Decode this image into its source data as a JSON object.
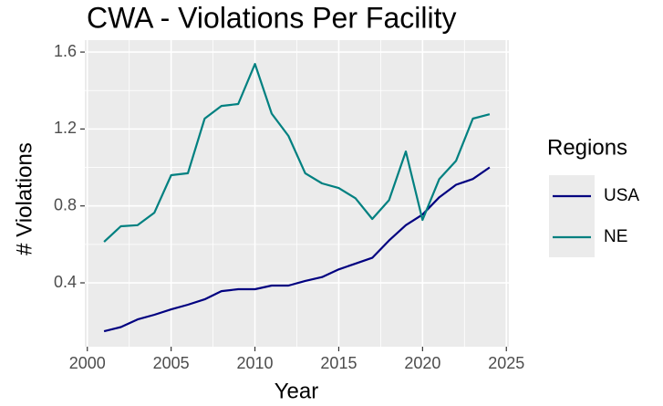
{
  "chart_data": {
    "type": "line",
    "title": "CWA - Violations Per Facility",
    "x_label": "Year",
    "y_label": "# Violations",
    "legend_title": "Regions",
    "x": [
      2001,
      2002,
      2003,
      2004,
      2005,
      2006,
      2007,
      2008,
      2009,
      2010,
      2011,
      2012,
      2013,
      2014,
      2015,
      2016,
      2017,
      2018,
      2019,
      2020,
      2021,
      2022,
      2023,
      2024
    ],
    "series": [
      {
        "name": "USA",
        "color": "#000080",
        "values": [
          0.148,
          0.17,
          0.21,
          0.234,
          0.262,
          0.286,
          0.314,
          0.357,
          0.367,
          0.367,
          0.386,
          0.386,
          0.41,
          0.43,
          0.47,
          0.5,
          0.53,
          0.62,
          0.7,
          0.755,
          0.845,
          0.91,
          0.94,
          1.0
        ]
      },
      {
        "name": "NE",
        "color": "#008080",
        "values": [
          0.613,
          0.694,
          0.7,
          0.765,
          0.96,
          0.97,
          1.254,
          1.32,
          1.33,
          1.538,
          1.28,
          1.164,
          0.97,
          0.917,
          0.893,
          0.84,
          0.732,
          0.83,
          1.083,
          0.727,
          0.94,
          1.035,
          1.254,
          1.277
        ]
      }
    ],
    "xlim": [
      1999.85,
      2025.15
    ],
    "xticks": [
      2000,
      2005,
      2010,
      2015,
      2020,
      2025
    ],
    "ylim": [
      0.068,
      1.662
    ],
    "yticks": [
      0.4,
      0.8,
      1.2,
      1.6
    ],
    "grid": true,
    "legend": "right"
  }
}
